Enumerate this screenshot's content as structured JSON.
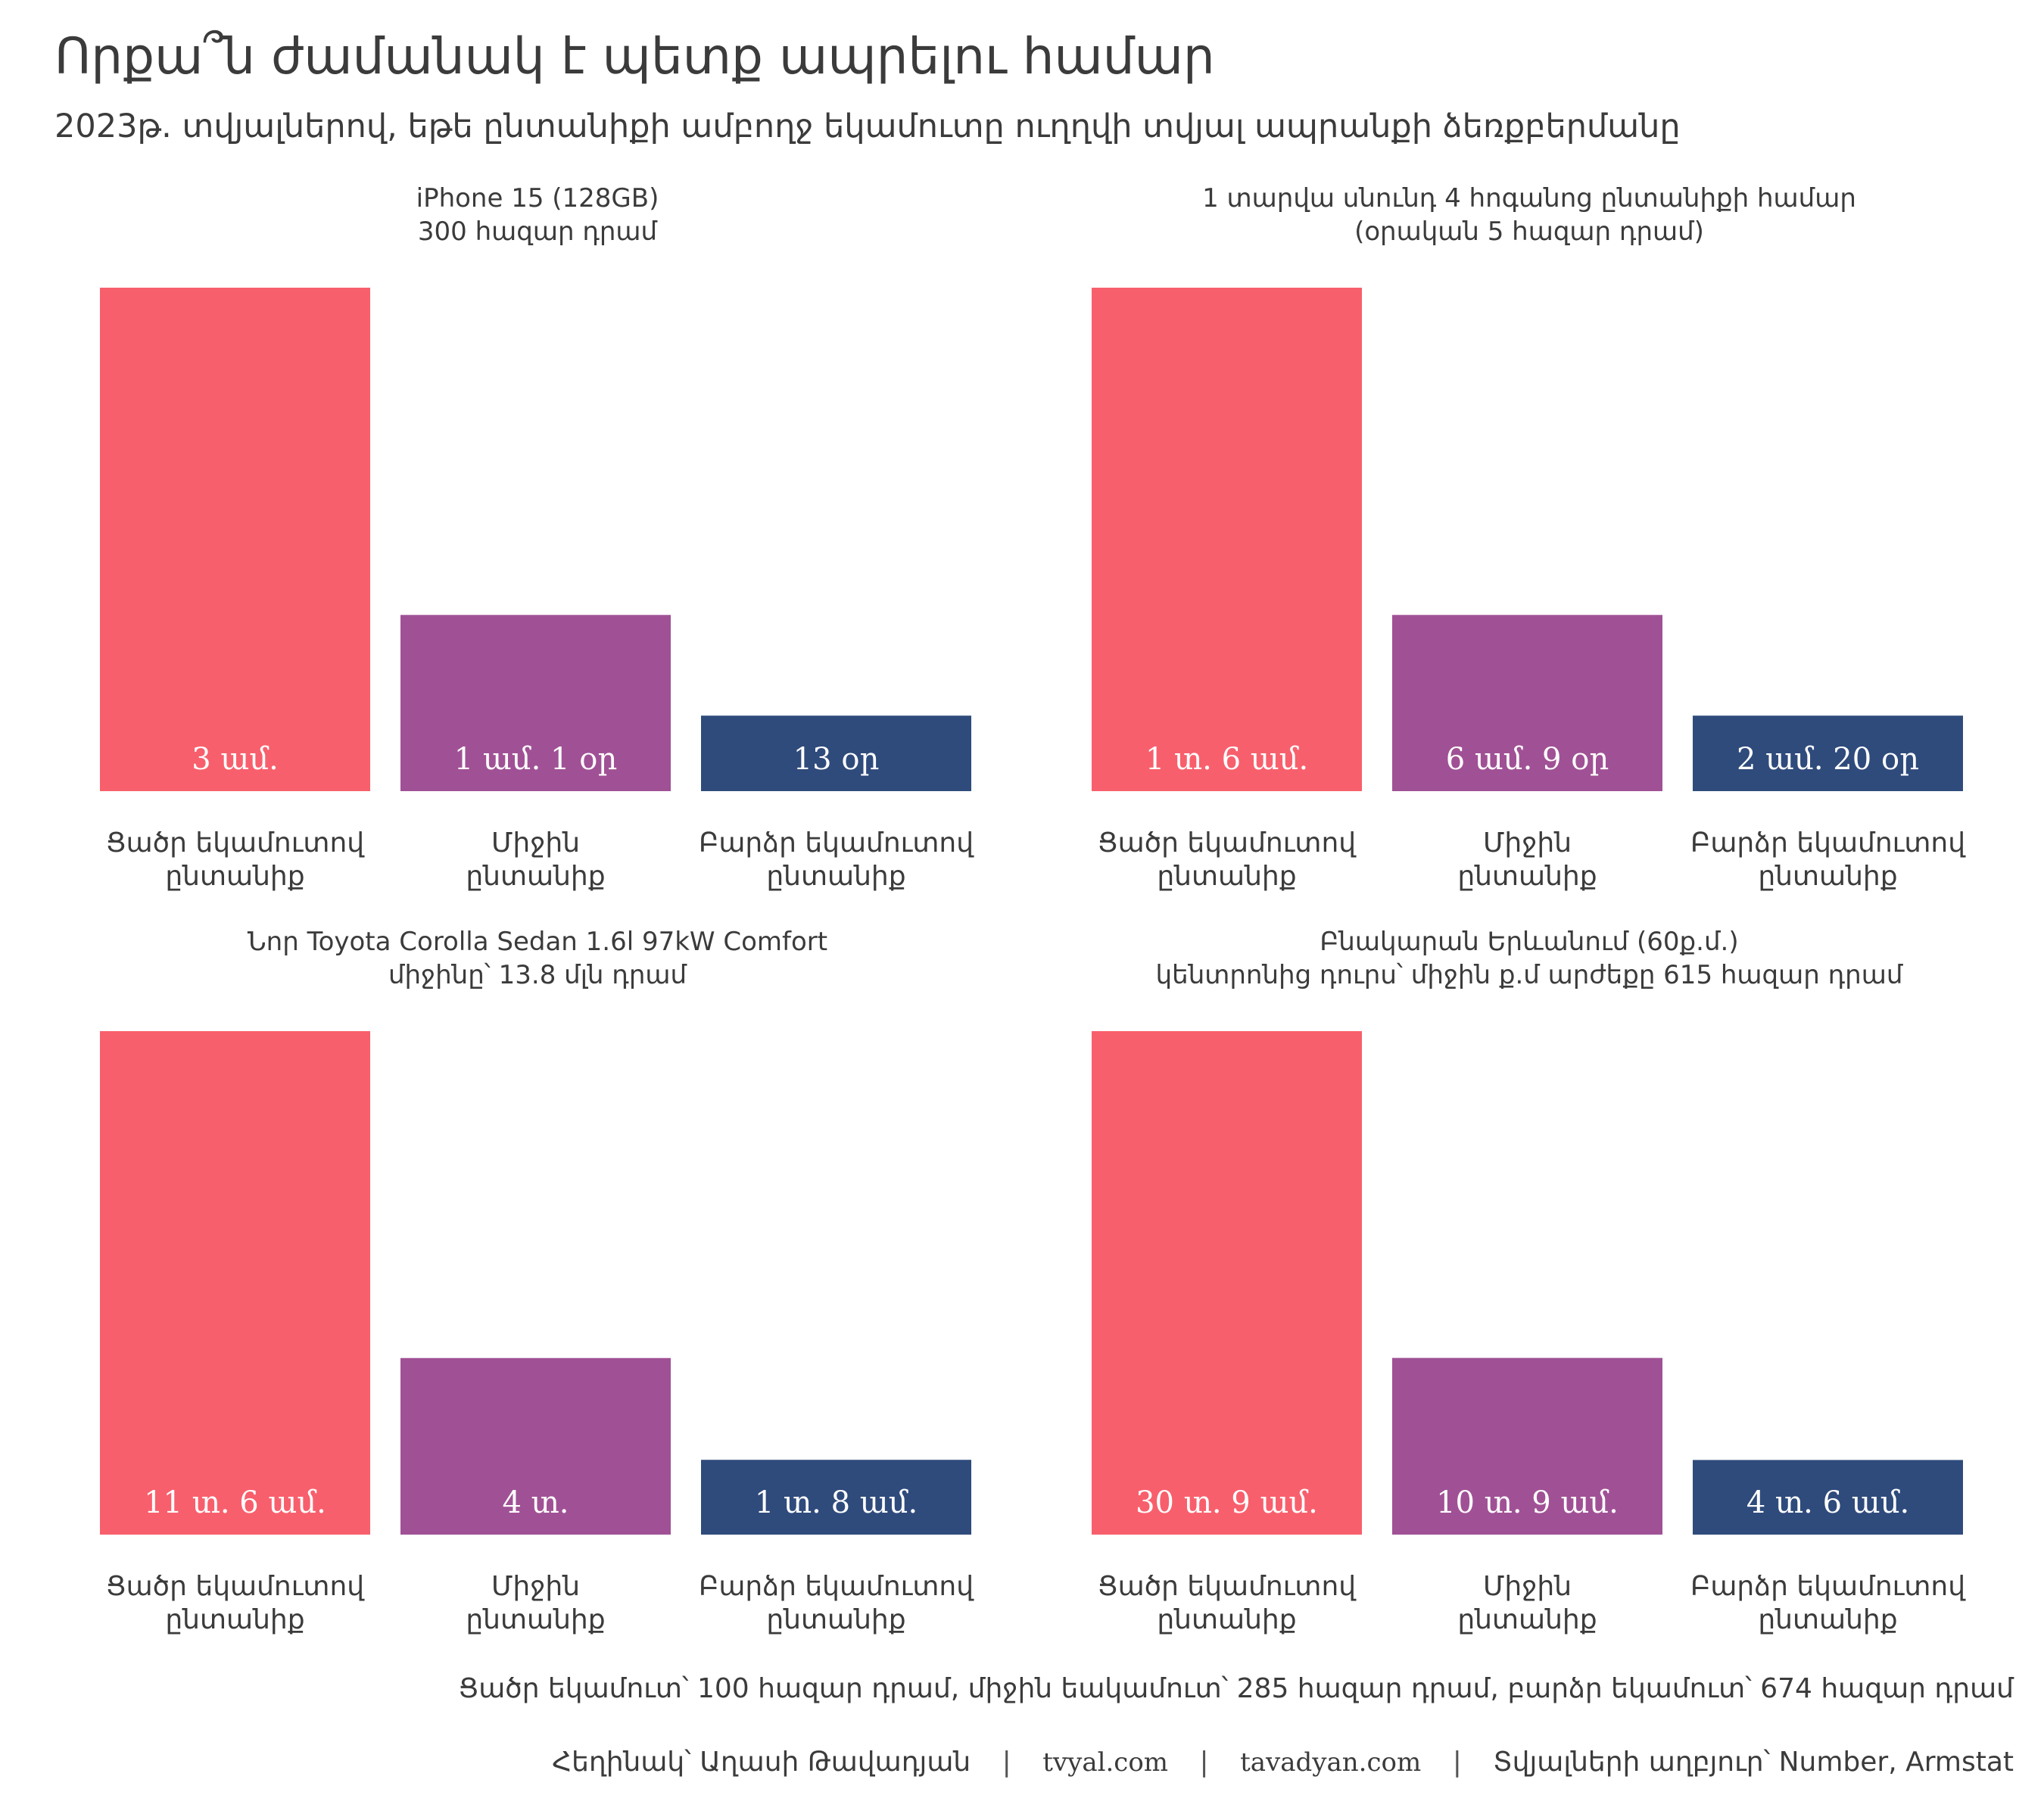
{
  "header": {
    "title": "Որքա՞ն ժամանակ է պետք ապրելու համար",
    "subtitle": "2023թ. տվյալներով, եթե ընտանիքի ամբողջ եկամուտը ուղղվի տվյալ ապրանքի ձեռքբերմանը"
  },
  "colors": {
    "low": "#f85f6c",
    "mid": "#a05195",
    "high": "#2f4b7c",
    "label_text": "#ffffff"
  },
  "footnote": "Ցածր եկամուտ՝ 100 հազար դրամ, միջին եակամուտ՝ 285 հազար դրամ, բարձր եկամուտ՝ 674 հազար դրամ",
  "credits": {
    "author": "Հեղինակ՝ Աղասի Թավադյան",
    "site1": "tvyal.com",
    "site2": "tavadyan.com",
    "sources": "Տվյալների աղբյուր՝ Number, Armstat"
  },
  "chart_data": [
    {
      "type": "bar",
      "title": "iPhone 15 (128GB)",
      "subtitle": "300 հազար դրամ",
      "categories": [
        [
          "Ցածր եկամուտով",
          "ընտանիք"
        ],
        [
          "Միջին",
          "ընտանիք"
        ],
        [
          "Բարձր եկամուտով",
          "ընտանիք"
        ]
      ],
      "values": [
        3.0,
        1.05,
        0.45
      ],
      "value_units": "months",
      "data_labels": [
        "3 ամ.",
        "1 ամ. 1 օր",
        "13 օր"
      ]
    },
    {
      "type": "bar",
      "title": "1 տարվա սնունդ 4 հոգանոց ընտանիքի համար",
      "subtitle": "(օրական 5 հազար դրամ)",
      "categories": [
        [
          "Ցածր եկամուտով",
          "ընտանիք"
        ],
        [
          "Միջին",
          "ընտանիք"
        ],
        [
          "Բարձր եկամուտով",
          "ընտանիք"
        ]
      ],
      "values": [
        18.0,
        6.3,
        2.7
      ],
      "value_units": "months",
      "data_labels": [
        "1 տ. 6 ամ.",
        "6 ամ. 9 օր",
        "2 ամ. 20 օր"
      ]
    },
    {
      "type": "bar",
      "title": "Նոր Toyota Corolla Sedan 1.6l 97kW Comfort",
      "subtitle": "միջինը՝ 13.8 մլն դրամ",
      "categories": [
        [
          "Ցածր եկամուտով",
          "ընտանիք"
        ],
        [
          "Միջին",
          "ընտանիք"
        ],
        [
          "Բարձր եկամուտով",
          "ընտանիք"
        ]
      ],
      "values": [
        138.0,
        48.4,
        20.5
      ],
      "value_units": "months",
      "data_labels": [
        "11 տ. 6 ամ.",
        "4 տ.",
        "1 տ. 8 ամ."
      ]
    },
    {
      "type": "bar",
      "title": "Բնակարան Երևանում (60ք.մ.)",
      "subtitle": "կենտրոնից դուրս՝ միջին ք.մ արժեքը 615 հազար դրամ",
      "categories": [
        [
          "Ցածր եկամուտով",
          "ընտանիք"
        ],
        [
          "Միջին",
          "ընտանիք"
        ],
        [
          "Բարձր եկամուտով",
          "ընտանիք"
        ]
      ],
      "values": [
        369.0,
        129.5,
        54.7
      ],
      "value_units": "months",
      "data_labels": [
        "30 տ. 9 ամ.",
        "10 տ. 9 ամ.",
        "4 տ. 6 ամ."
      ]
    }
  ]
}
